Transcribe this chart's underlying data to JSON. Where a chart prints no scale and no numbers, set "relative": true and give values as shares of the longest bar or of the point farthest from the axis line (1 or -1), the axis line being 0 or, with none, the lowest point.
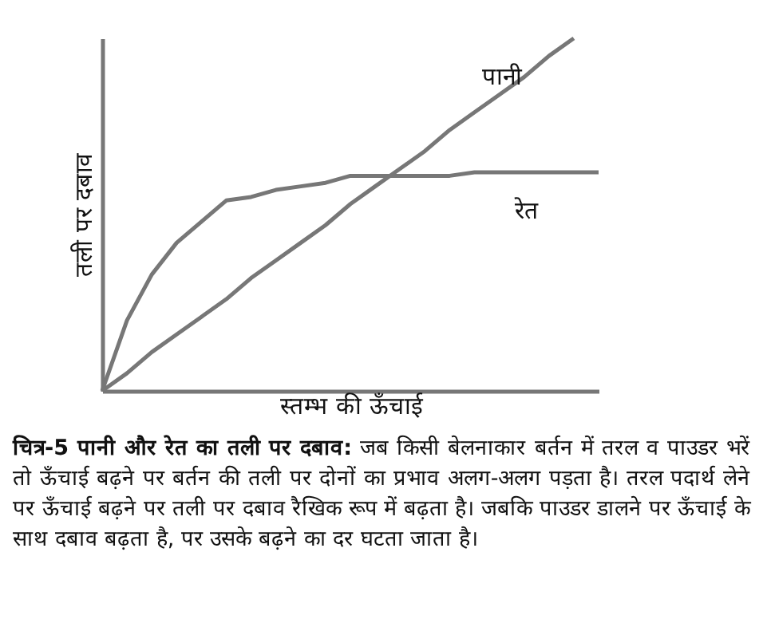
{
  "chart_data": {
    "type": "line",
    "title": "चित्र-5 पानी और रेत का तली पर दबाव:",
    "annotations": [
      "जब किसी बेलनाकार बर्तन में तरल व पाउडर भरें तो ऊँचाई बढ़ने पर बर्तन की तली पर दोनों का प्रभाव अलग-अलग पड़ता है। तरल पदार्थ लेने पर ऊँचाई बढ़ने पर तली पर दबाव रैखिक रूप में बढ़ता है। जबकि पाउडर डालने पर ऊँचाई के साथ दबाव बढ़ता है, पर उसके बढ़ने का दर घटता जाता है।"
    ],
    "xlabel": "स्तम्भ की ऊँचाई",
    "ylabel": "तली पर दबाव",
    "relative": true,
    "tick_labels": false,
    "legend": false,
    "categories": [
      null,
      null,
      null,
      null,
      null,
      null,
      null,
      null,
      null,
      null,
      null,
      null,
      null,
      null,
      null,
      null,
      null,
      null,
      null,
      null,
      null
    ],
    "series": [
      {
        "name": "पानी",
        "color": "#777777",
        "values": [
          0,
          0.05,
          0.11,
          0.16,
          0.21,
          0.26,
          0.32,
          0.37,
          0.42,
          0.47,
          0.53,
          0.58,
          0.63,
          0.68,
          0.74,
          0.79,
          0.84,
          0.89,
          0.95,
          1,
          null
        ]
      },
      {
        "name": "रेत",
        "color": "#777777",
        "values": [
          0,
          0.2,
          0.33,
          0.42,
          0.48,
          0.54,
          0.55,
          0.57,
          0.58,
          0.59,
          0.61,
          0.61,
          0.61,
          0.61,
          0.61,
          0.62,
          0.62,
          0.62,
          0.62,
          0.62,
          0.62
        ]
      }
    ]
  }
}
